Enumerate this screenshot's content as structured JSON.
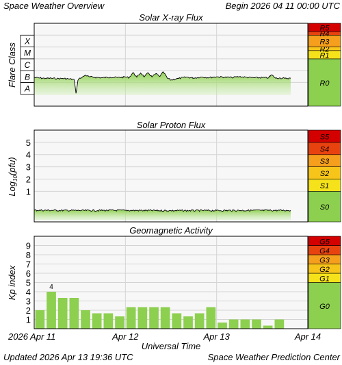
{
  "header": {
    "title": "Space Weather Overview",
    "begin": "Begin 2026 04 11 00:00 UTC"
  },
  "footer": {
    "updated": "Updated 2026 Apr 13 19:36 UTC",
    "credit": "Space Weather Prediction Center"
  },
  "colors": {
    "plot_bg": "#f7f7f7",
    "grid": "#d4d4d4",
    "green": "#8dcf4f",
    "green_light": "#c9ecab",
    "level1": "#f5e21b",
    "level2": "#f7c51a",
    "level3": "#f59f1c",
    "level4": "#e8420f",
    "level5": "#d40000"
  },
  "time_axis": {
    "title": "Universal Time",
    "start": "2026-04-11T00:00Z",
    "end": "2026-04-14T00:00Z",
    "ticks": [
      {
        "label": "2026 Apr 11",
        "time": "2026-04-11T00:00Z"
      },
      {
        "label": "Apr 12",
        "time": "2026-04-12T00:00Z"
      },
      {
        "label": "Apr 13",
        "time": "2026-04-13T00:00Z"
      },
      {
        "label": "Apr 14",
        "time": "2026-04-14T00:00Z"
      }
    ]
  },
  "chart_data": [
    {
      "id": "xray",
      "type": "line",
      "title": "Solar X-ray Flux",
      "ylabel": "Flare Class",
      "log_scale": true,
      "ylim": [
        1e-09,
        0.01
      ],
      "classes": [
        {
          "label": "A",
          "lo": 1e-08,
          "hi": 1e-07
        },
        {
          "label": "B",
          "lo": 1e-07,
          "hi": 1e-06
        },
        {
          "label": "C",
          "lo": 1e-06,
          "hi": 1e-05
        },
        {
          "label": "M",
          "lo": 1e-05,
          "hi": 0.0001
        },
        {
          "label": "X",
          "lo": 0.0001,
          "hi": 0.001
        }
      ],
      "scale_bar": [
        {
          "label": "R0",
          "lo": 1e-09,
          "hi": 1e-05,
          "color": "#8dcf4f"
        },
        {
          "label": "R1",
          "lo": 1e-05,
          "hi": 5e-05,
          "color": "#f5e21b"
        },
        {
          "label": "R2",
          "lo": 5e-05,
          "hi": 0.0001,
          "color": "#f7c51a"
        },
        {
          "label": "R3",
          "lo": 0.0001,
          "hi": 0.001,
          "color": "#f59f1c"
        },
        {
          "label": "R4",
          "lo": 0.001,
          "hi": 0.002,
          "color": "#e8420f"
        },
        {
          "label": "R5",
          "lo": 0.002,
          "hi": 0.01,
          "color": "#d40000"
        }
      ],
      "series": [
        {
          "x": [
            "2026-04-11T00:00Z",
            "2026-04-11T01:30Z",
            "2026-04-11T03:00Z",
            "2026-04-11T04:30Z",
            "2026-04-11T06:00Z",
            "2026-04-11T07:30Z",
            "2026-04-11T09:00Z",
            "2026-04-11T10:30Z",
            "2026-04-11T11:00Z",
            "2026-04-11T11:30Z",
            "2026-04-11T12:00Z",
            "2026-04-11T12:30Z",
            "2026-04-11T13:30Z",
            "2026-04-11T14:30Z",
            "2026-04-11T16:00Z",
            "2026-04-11T18:00Z",
            "2026-04-11T20:00Z",
            "2026-04-11T22:00Z",
            "2026-04-12T00:00Z",
            "2026-04-12T01:00Z",
            "2026-04-12T02:00Z",
            "2026-04-12T03:00Z",
            "2026-04-12T04:00Z",
            "2026-04-12T05:00Z",
            "2026-04-12T06:00Z",
            "2026-04-12T07:00Z",
            "2026-04-12T08:00Z",
            "2026-04-12T09:00Z",
            "2026-04-12T10:00Z",
            "2026-04-12T11:00Z",
            "2026-04-12T12:00Z",
            "2026-04-12T14:00Z",
            "2026-04-12T16:00Z",
            "2026-04-12T18:00Z",
            "2026-04-12T20:00Z",
            "2026-04-12T22:00Z",
            "2026-04-13T00:00Z",
            "2026-04-13T02:00Z",
            "2026-04-13T04:00Z",
            "2026-04-13T06:00Z",
            "2026-04-13T08:00Z",
            "2026-04-13T10:00Z",
            "2026-04-13T12:00Z",
            "2026-04-13T13:30Z",
            "2026-04-13T14:30Z",
            "2026-04-13T15:30Z",
            "2026-04-13T16:30Z",
            "2026-04-13T18:00Z",
            "2026-04-13T19:30Z"
          ],
          "y": [
            2.6e-07,
            2.4e-07,
            2.2e-07,
            2.3e-07,
            2.1e-07,
            2.2e-07,
            2e-07,
            1.8e-07,
            1.2e-08,
            1.5e-07,
            2.4e-07,
            2.6e-07,
            4.2e-07,
            3e-07,
            2.7e-07,
            2.5e-07,
            2.8e-07,
            2.6e-07,
            2.9e-07,
            2.6e-07,
            6.8e-07,
            2.8e-07,
            6.4e-07,
            3e-07,
            6.6e-07,
            2.9e-07,
            5.6e-07,
            3.2e-07,
            7.8e-07,
            2.4e-07,
            1.6e-07,
            2.2e-07,
            2.8e-07,
            2.4e-07,
            2.9e-07,
            2.6e-07,
            3e-07,
            2.8e-07,
            2.6e-07,
            3.1e-07,
            2.7e-07,
            2.5e-07,
            2.6e-07,
            2.4e-07,
            4.4e-07,
            2.3e-07,
            2.4e-07,
            2.2e-07,
            2.3e-07
          ]
        }
      ]
    },
    {
      "id": "proton",
      "type": "line",
      "title": "Solar Proton Flux",
      "ylabel": "Log10(pfu)",
      "ylim": [
        -1.5,
        6
      ],
      "ticks": [
        1,
        2,
        3,
        4,
        5
      ],
      "scale_bar": [
        {
          "label": "S0",
          "lo": -1.5,
          "hi": 1,
          "color": "#8dcf4f"
        },
        {
          "label": "S1",
          "lo": 1,
          "hi": 2,
          "color": "#f5e21b"
        },
        {
          "label": "S2",
          "lo": 2,
          "hi": 3,
          "color": "#f7c51a"
        },
        {
          "label": "S3",
          "lo": 3,
          "hi": 4,
          "color": "#f59f1c"
        },
        {
          "label": "S4",
          "lo": 4,
          "hi": 5,
          "color": "#e8420f"
        },
        {
          "label": "S5",
          "lo": 5,
          "hi": 6,
          "color": "#d40000"
        }
      ],
      "series": [
        {
          "x": [
            "2026-04-11T00:00Z",
            "2026-04-11T12:00Z",
            "2026-04-12T00:00Z",
            "2026-04-12T12:00Z",
            "2026-04-13T00:00Z",
            "2026-04-13T12:00Z",
            "2026-04-13T19:30Z"
          ],
          "y": [
            -0.55,
            -0.57,
            -0.56,
            -0.58,
            -0.57,
            -0.56,
            -0.56
          ]
        }
      ]
    },
    {
      "id": "kp",
      "type": "bar",
      "title": "Geomagnetic Activity",
      "ylabel": "Kp index",
      "ylim": [
        0,
        10
      ],
      "ticks": [
        1,
        2,
        3,
        4,
        5,
        6,
        7,
        8,
        9
      ],
      "bar_width_hours": 3,
      "annotation": {
        "text": "4",
        "bar_index": 1
      },
      "scale_bar": [
        {
          "label": "G0",
          "lo": 0,
          "hi": 5,
          "color": "#8dcf4f"
        },
        {
          "label": "G1",
          "lo": 5,
          "hi": 6,
          "color": "#f5e21b"
        },
        {
          "label": "G2",
          "lo": 6,
          "hi": 7,
          "color": "#f7c51a"
        },
        {
          "label": "G3",
          "lo": 7,
          "hi": 8,
          "color": "#f59f1c"
        },
        {
          "label": "G4",
          "lo": 8,
          "hi": 9,
          "color": "#e8420f"
        },
        {
          "label": "G5",
          "lo": 9,
          "hi": 10,
          "color": "#d40000"
        }
      ],
      "x": [
        "2026-04-11T00:00Z",
        "2026-04-11T03:00Z",
        "2026-04-11T06:00Z",
        "2026-04-11T09:00Z",
        "2026-04-11T12:00Z",
        "2026-04-11T15:00Z",
        "2026-04-11T18:00Z",
        "2026-04-11T21:00Z",
        "2026-04-12T00:00Z",
        "2026-04-12T03:00Z",
        "2026-04-12T06:00Z",
        "2026-04-12T09:00Z",
        "2026-04-12T12:00Z",
        "2026-04-12T15:00Z",
        "2026-04-12T18:00Z",
        "2026-04-12T21:00Z",
        "2026-04-13T00:00Z",
        "2026-04-13T03:00Z",
        "2026-04-13T06:00Z",
        "2026-04-13T09:00Z",
        "2026-04-13T12:00Z",
        "2026-04-13T15:00Z"
      ],
      "values": [
        2.0,
        4.0,
        3.33,
        3.33,
        2.0,
        1.67,
        1.67,
        1.33,
        2.33,
        2.33,
        2.33,
        2.33,
        1.67,
        1.33,
        1.67,
        2.33,
        0.67,
        1.0,
        1.0,
        1.0,
        0.33,
        1.0
      ]
    }
  ]
}
